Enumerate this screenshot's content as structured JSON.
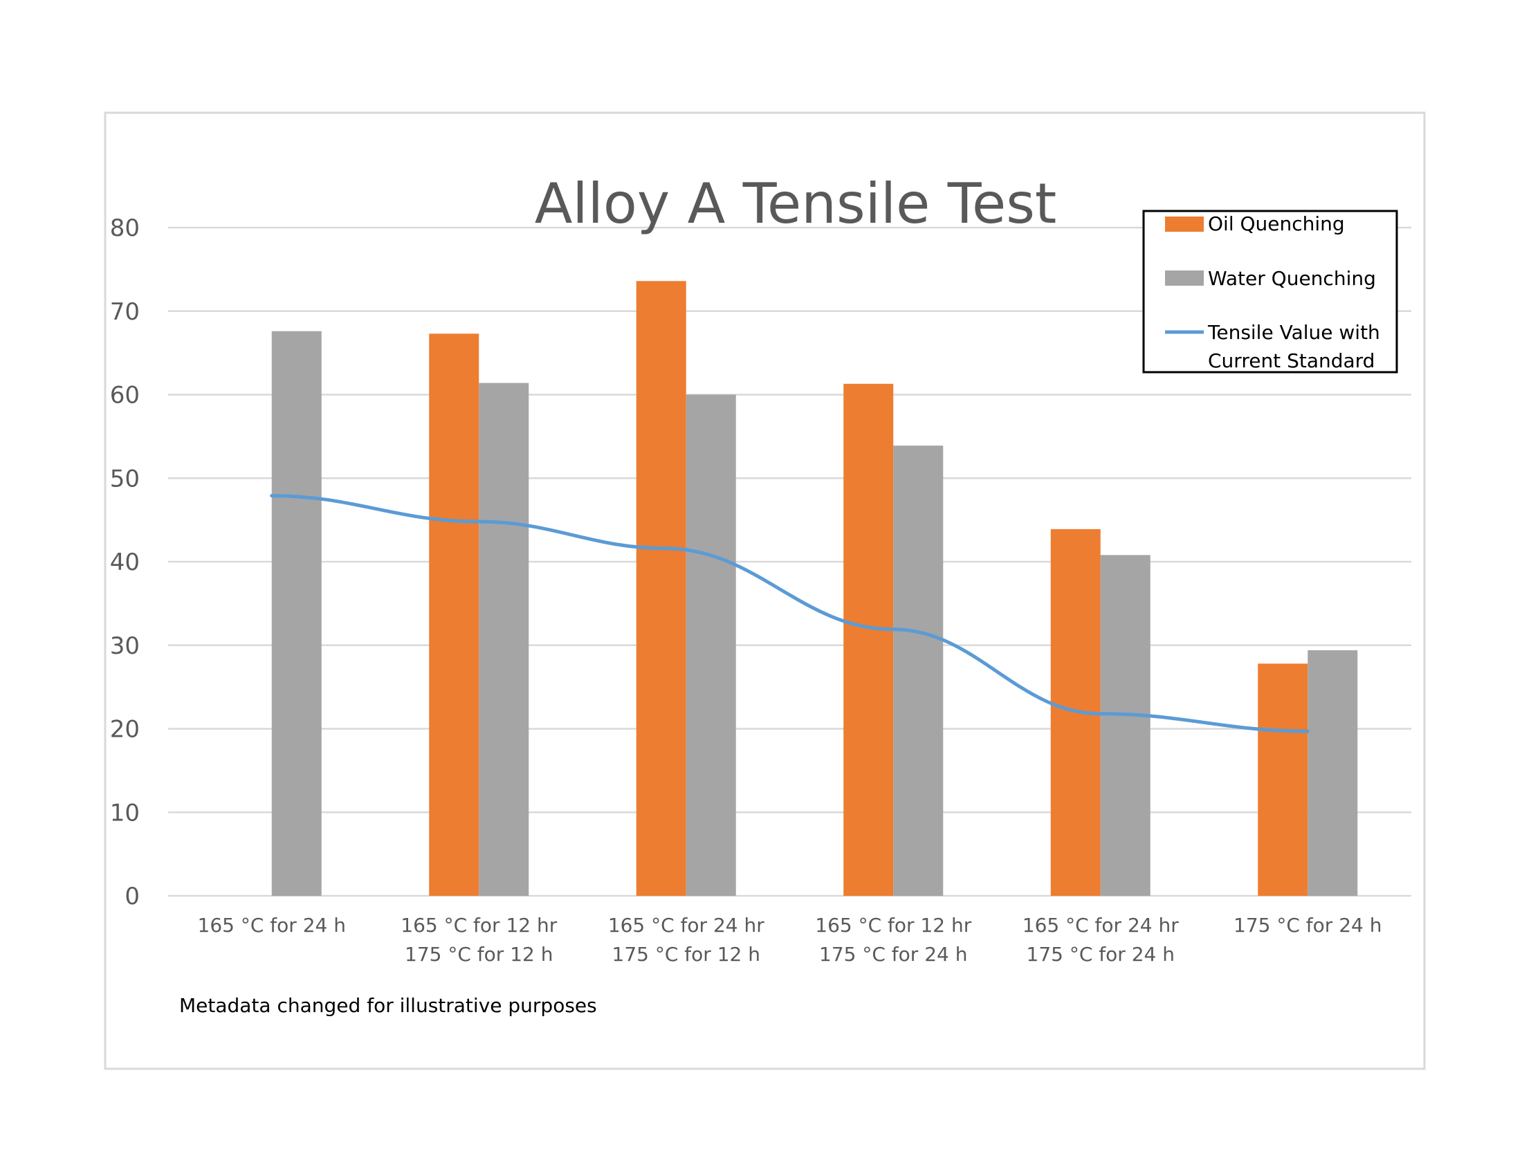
{
  "chart_data": {
    "type": "bar",
    "title": "Alloy A Tensile Test",
    "categories": [
      [
        "165 °C for 24 h"
      ],
      [
        "165 °C for 12 hr",
        "175 °C for 12 h"
      ],
      [
        "165 °C for 24 hr",
        "175 °C for 12 h"
      ],
      [
        "165 °C for 12 hr",
        "175 °C for 24 h"
      ],
      [
        "165 °C for 24 hr",
        "175 °C for 24 h"
      ],
      [
        "175 °C for 24 h"
      ]
    ],
    "series": [
      {
        "name": "Oil Quenching",
        "type": "bar",
        "color": "#ed7d31",
        "values": [
          null,
          67.3,
          73.6,
          61.3,
          43.9,
          27.8
        ]
      },
      {
        "name": "Water Quenching",
        "type": "bar",
        "color": "#a5a5a5",
        "values": [
          67.6,
          61.4,
          60.0,
          53.9,
          40.8,
          29.4
        ]
      },
      {
        "name": "Tensile Value with Current Standard",
        "name_lines": [
          "Tensile Value with",
          "Current Standard"
        ],
        "type": "line",
        "color": "#5b9bd5",
        "points": [
          {
            "x": 0.0,
            "y": 47.9
          },
          {
            "x": 1.0,
            "y": 44.8
          },
          {
            "x": 1.9,
            "y": 41.6
          },
          {
            "x": 3.0,
            "y": 31.9
          },
          {
            "x": 4.0,
            "y": 21.8
          },
          {
            "x": 5.0,
            "y": 19.7
          }
        ]
      }
    ],
    "ylim": [
      0,
      80
    ],
    "yticks": [
      0,
      10,
      20,
      30,
      40,
      50,
      60,
      70,
      80
    ],
    "grid": true,
    "legend_position": "top-right",
    "xlabel": "",
    "ylabel": ""
  },
  "note": "Metadata changed for illustrative purposes"
}
